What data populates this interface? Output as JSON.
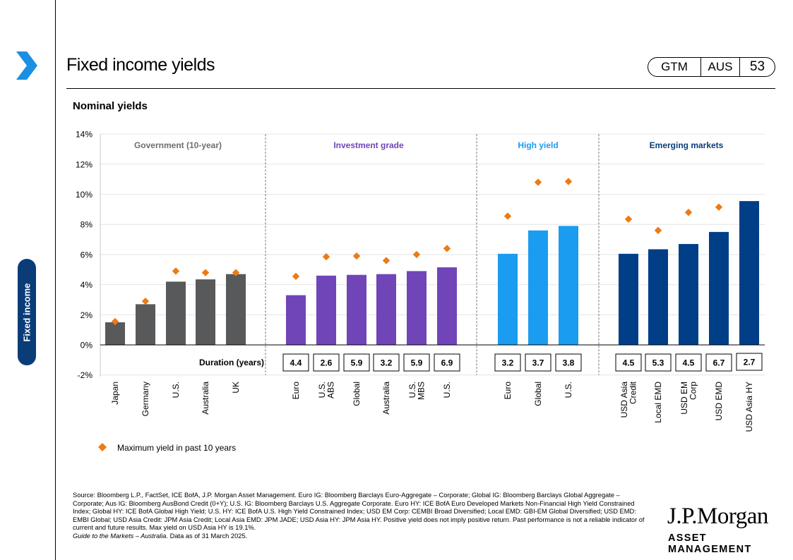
{
  "header": {
    "title": "Fixed income yields",
    "badge": [
      "GTM",
      "AUS",
      "53"
    ],
    "section_tab": "Fixed income"
  },
  "chart_data": {
    "type": "bar",
    "title": "Nominal yields",
    "ylim": [
      -2,
      14
    ],
    "yticks": [
      "14%",
      "12%",
      "10%",
      "8%",
      "6%",
      "4%",
      "2%",
      "0%",
      "-2%"
    ],
    "yticks_values": [
      14,
      12,
      10,
      8,
      6,
      4,
      2,
      0,
      -2
    ],
    "grid": true,
    "duration_label": "Duration (years)",
    "legend": {
      "label": "Maximum yield in past 10 years",
      "marker_color": "#ee7a14",
      "placement": "bottom-left"
    },
    "groups": [
      {
        "name": "Government (10-year)",
        "color": "#58595b",
        "label_color": "#6d6e70",
        "categories": [
          "Japan",
          "Germany",
          "U.S.",
          "Australia",
          "UK"
        ],
        "values": [
          1.5,
          2.7,
          4.2,
          4.35,
          4.7
        ],
        "max_yield": [
          1.55,
          2.9,
          4.9,
          4.8,
          4.8
        ],
        "duration": []
      },
      {
        "name": "Investment grade",
        "color": "#7045b8",
        "label_color": "#7045b8",
        "categories": [
          "Euro",
          "U.S. ABS",
          "Global",
          "Australia",
          "U.S. MBS",
          "U.S."
        ],
        "values": [
          3.3,
          4.6,
          4.65,
          4.7,
          4.9,
          5.15
        ],
        "max_yield": [
          4.55,
          5.85,
          5.9,
          5.6,
          6.0,
          6.4
        ],
        "duration": [
          "4.4",
          "2.6",
          "5.9",
          "3.2",
          "5.9",
          "6.9"
        ]
      },
      {
        "name": "High yield",
        "color": "#1a9cf0",
        "label_color": "#1a9cf0",
        "categories": [
          "Euro",
          "Global",
          "U.S."
        ],
        "values": [
          6.05,
          7.6,
          7.9
        ],
        "max_yield": [
          8.55,
          10.8,
          10.85
        ],
        "duration": [
          "3.2",
          "3.7",
          "3.8"
        ]
      },
      {
        "name": "Emerging markets",
        "color": "#003f87",
        "label_color": "#0a3d78",
        "categories": [
          "USD Asia Credit",
          "Local EMD",
          "USD EM Corp",
          "USD EMD",
          "USD Asia HY"
        ],
        "values": [
          6.05,
          6.35,
          6.7,
          7.5,
          9.55
        ],
        "max_yield": [
          8.35,
          7.6,
          8.8,
          9.15,
          null
        ],
        "duration": [
          "4.5",
          "5.3",
          "4.5",
          "6.7",
          "2.7"
        ]
      }
    ]
  },
  "footer": {
    "source": "Source: Bloomberg L.P., FactSet, ICE BofA, J.P. Morgan Asset Management. Euro IG: Bloomberg Barclays Euro-Aggregate – Corporate; Global IG: Bloomberg Barclays Global Aggregate – Corporate; Aus IG: Bloomberg AusBond Credit (0+Y); U.S. IG: Bloomberg Barclays U.S. Aggregate Corporate. Euro HY: ICE BofA Euro Developed Markets Non-Financial High Yield Constrained Index; Global HY: ICE BofA Global High Yield; U.S. HY: ICE BofA U.S. High Yield Constrained Index; USD EM Corp: CEMBI Broad Diversified; Local EMD: GBI-EM Global Diversified; USD EMD: EMBI Global; USD Asia Credit: JPM Asia Credit; Local Asia EMD: JPM JADE; USD Asia HY: JPM Asia HY. Positive yield does not imply positive return. Past performance is not a reliable indicator of current and future results. Max yield on USD Asia HY is 19.1%.",
    "guide": "Guide to the Markets – Australia",
    "data_as_of": ". Data as of 31 March 2025.",
    "logo_line1": "J.P.Morgan",
    "logo_line2": "ASSET MANAGEMENT"
  }
}
